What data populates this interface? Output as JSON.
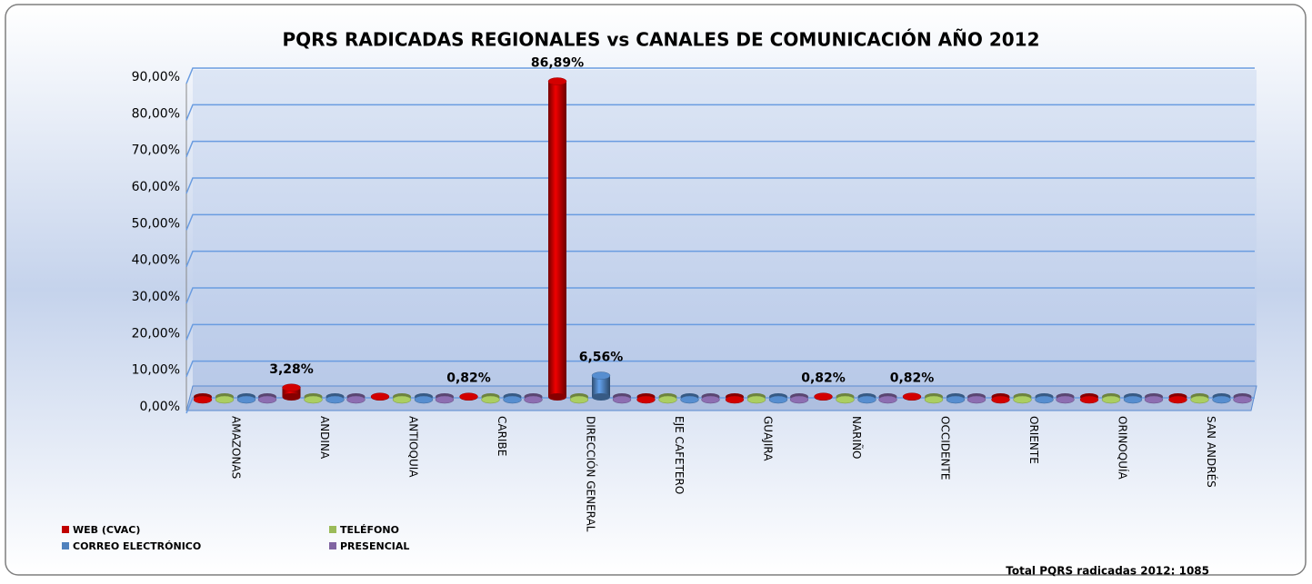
{
  "chart_data": {
    "type": "bar3d",
    "title": "PQRS RADICADAS REGIONALES vs CANALES DE COMUNICACIÓN AÑO 2012",
    "categories": [
      "AMAZONAS",
      "ANDINA",
      "ANTIOQUIA",
      "CARIBE",
      "DIRECCIÓN GENERAL",
      "EJE CAFETERO",
      "GUAJIRA",
      "NARIÑO",
      "OCCIDENTE",
      "ORIENTE",
      "ORINOQUÍA",
      "SAN ANDRÉS"
    ],
    "series": [
      {
        "name": "WEB (CVAC)",
        "color": "#c00000",
        "values": [
          0,
          3.28,
          0.82,
          0.82,
          86.89,
          0,
          0,
          0.82,
          0.82,
          0,
          0,
          0
        ],
        "value_labels": [
          null,
          "3,28%",
          null,
          "0,82%",
          "86,89%",
          null,
          null,
          "0,82%",
          "0,82%",
          null,
          null,
          null
        ]
      },
      {
        "name": "TELÉFONO",
        "color": "#9bbb59",
        "values": [
          0,
          0,
          0,
          0,
          0,
          0,
          0,
          0,
          0,
          0,
          0,
          0
        ]
      },
      {
        "name": "CORREO ELECTRÓNICO",
        "color": "#4f81bd",
        "values": [
          0,
          0,
          0,
          0,
          6.56,
          0,
          0,
          0,
          0,
          0,
          0,
          0
        ],
        "value_labels": [
          null,
          null,
          null,
          null,
          "6,56%",
          null,
          null,
          null,
          null,
          null,
          null,
          null
        ]
      },
      {
        "name": "PRESENCIAL",
        "color": "#8064a2",
        "values": [
          0,
          0,
          0,
          0,
          0,
          0,
          0,
          0,
          0,
          0,
          0,
          0
        ]
      }
    ],
    "ylim": [
      0,
      90
    ],
    "yticks": [
      {
        "value": 0,
        "label": "0,00%"
      },
      {
        "value": 10,
        "label": "10,00%"
      },
      {
        "value": 20,
        "label": "20,00%"
      },
      {
        "value": 30,
        "label": "30,00%"
      },
      {
        "value": 40,
        "label": "40,00%"
      },
      {
        "value": 50,
        "label": "50,00%"
      },
      {
        "value": 60,
        "label": "60,00%"
      },
      {
        "value": 70,
        "label": "70,00%"
      },
      {
        "value": 80,
        "label": "80,00%"
      },
      {
        "value": 90,
        "label": "90,00%"
      }
    ],
    "grid": true,
    "legend": "bottom-left",
    "annotation": "Total PQRS radicadas 2012: 1085"
  }
}
